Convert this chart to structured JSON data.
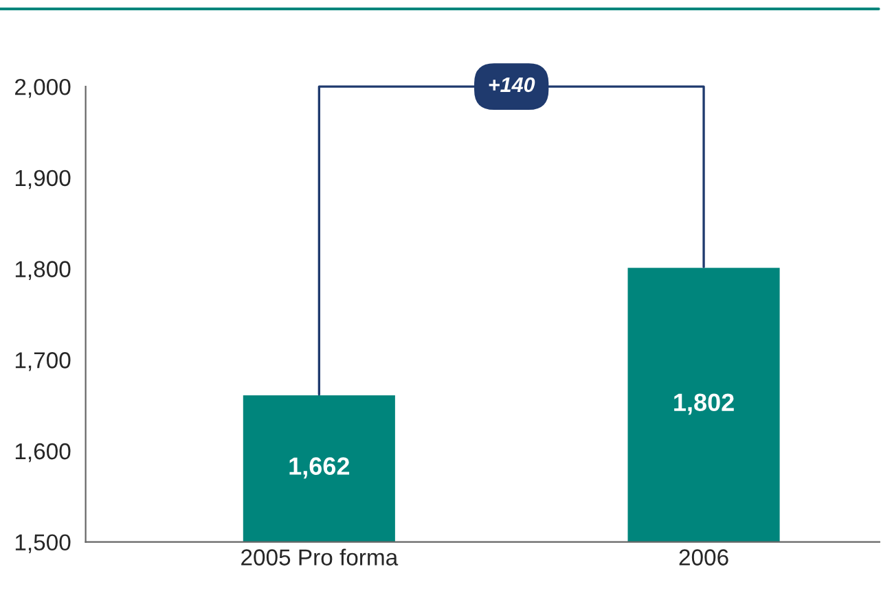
{
  "chart_data": {
    "type": "bar",
    "categories": [
      "2005 Pro forma",
      "2006"
    ],
    "values": [
      1662,
      1802
    ],
    "color": "#00857c",
    "value_labels": [
      "1,662",
      "1,802"
    ],
    "ylim": [
      1500,
      2000
    ],
    "yticks": [
      {
        "value": 1500,
        "label": "1,500"
      },
      {
        "value": 1600,
        "label": "1,600"
      },
      {
        "value": 1700,
        "label": "1,700"
      },
      {
        "value": 1800,
        "label": "1,800"
      },
      {
        "value": 1900,
        "label": "1,900"
      },
      {
        "value": 2000,
        "label": "2,000"
      }
    ],
    "grid": false,
    "legend": false,
    "annotations": [
      {
        "text": "+140",
        "x": "2006",
        "y": 1802
      }
    ]
  }
}
